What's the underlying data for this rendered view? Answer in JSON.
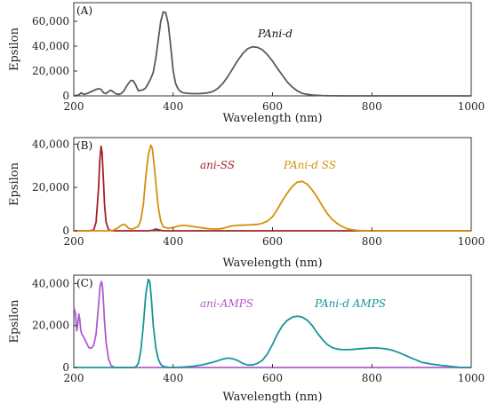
{
  "chart_data": [
    {
      "type": "line",
      "panel_label": "(A)",
      "xlabel": "Wavelength (nm)",
      "ylabel": "Epsilon",
      "xlim": [
        200,
        1000
      ],
      "ylim": [
        0,
        75000
      ],
      "xticks": [
        200,
        400,
        600,
        800,
        1000
      ],
      "xtick_labels": [
        "200",
        "400",
        "600",
        "800",
        "1000"
      ],
      "yticks": [
        0,
        20000,
        40000,
        60000
      ],
      "ytick_labels": [
        "0",
        "20,000",
        "40,000",
        "60,000"
      ],
      "grid": false,
      "series": [
        {
          "name": "PAni-d",
          "color": "#5a5a5a",
          "x": [
            200,
            210,
            215,
            220,
            228,
            235,
            240,
            245,
            250,
            255,
            260,
            265,
            270,
            275,
            280,
            285,
            290,
            295,
            300,
            305,
            310,
            315,
            320,
            325,
            330,
            335,
            340,
            345,
            350,
            355,
            360,
            365,
            370,
            375,
            380,
            385,
            390,
            395,
            400,
            405,
            410,
            415,
            420,
            425,
            430,
            440,
            450,
            460,
            470,
            480,
            490,
            500,
            510,
            520,
            530,
            540,
            550,
            560,
            570,
            580,
            590,
            600,
            610,
            620,
            630,
            640,
            650,
            660,
            670,
            680,
            690,
            700,
            720,
            750,
            800,
            850,
            900,
            950,
            1000
          ],
          "y": [
            0,
            800,
            2500,
            1200,
            2000,
            3500,
            4200,
            5200,
            5800,
            5200,
            2500,
            1800,
            3500,
            4500,
            3000,
            1600,
            1200,
            1800,
            3500,
            7000,
            10000,
            12500,
            12000,
            8500,
            4000,
            4500,
            5000,
            6500,
            10000,
            14000,
            19000,
            30000,
            45000,
            60000,
            67500,
            67000,
            58000,
            40000,
            20000,
            10000,
            5500,
            3500,
            2500,
            2200,
            2000,
            1800,
            1800,
            2000,
            2500,
            3500,
            6000,
            10000,
            15500,
            22000,
            28500,
            34000,
            38000,
            39500,
            39000,
            37000,
            33000,
            28000,
            22000,
            16500,
            11000,
            7000,
            4000,
            2000,
            1200,
            700,
            400,
            200,
            80,
            20,
            0,
            0,
            0,
            0,
            0
          ]
        }
      ],
      "annotations": [
        {
          "text": "PAni-d",
          "x": 570,
          "y": 55000,
          "color": "#111111"
        }
      ]
    },
    {
      "type": "line",
      "panel_label": "(B)",
      "xlabel": "Wavelength (nm)",
      "ylabel": "Epsilon",
      "xlim": [
        200,
        1000
      ],
      "ylim": [
        0,
        43000
      ],
      "xticks": [
        200,
        400,
        600,
        800,
        1000
      ],
      "xtick_labels": [
        "200",
        "400",
        "600",
        "800",
        "1000"
      ],
      "yticks": [
        0,
        20000,
        40000
      ],
      "ytick_labels": [
        "0",
        "20,000",
        "40,000"
      ],
      "grid": false,
      "series": [
        {
          "name": "ani-SS",
          "color": "#a3202a",
          "x": [
            200,
            230,
            240,
            245,
            250,
            252,
            255,
            257,
            260,
            262,
            265,
            270,
            275,
            280,
            300,
            350,
            360,
            365,
            370,
            380,
            400,
            500,
            1000
          ],
          "y": [
            0,
            0,
            300,
            4000,
            20000,
            32000,
            39000,
            36000,
            22000,
            12000,
            4000,
            500,
            100,
            0,
            0,
            0,
            300,
            800,
            500,
            0,
            0,
            0,
            0
          ],
          "label_text": "ani-SS"
        },
        {
          "name": "PAni-d SS",
          "color": "#d4900c",
          "x": [
            200,
            270,
            280,
            290,
            295,
            300,
            305,
            310,
            315,
            320,
            330,
            335,
            340,
            345,
            350,
            355,
            358,
            362,
            366,
            370,
            375,
            380,
            390,
            400,
            410,
            420,
            430,
            440,
            450,
            460,
            470,
            480,
            490,
            500,
            510,
            520,
            530,
            540,
            550,
            560,
            570,
            580,
            590,
            600,
            610,
            620,
            630,
            640,
            650,
            660,
            670,
            680,
            690,
            700,
            710,
            720,
            730,
            740,
            750,
            760,
            770,
            780,
            790,
            800,
            820,
            850,
            1000
          ],
          "y": [
            0,
            0,
            300,
            1500,
            2500,
            3000,
            2500,
            1200,
            800,
            1000,
            2000,
            5000,
            12000,
            25000,
            35000,
            39500,
            38000,
            30000,
            20000,
            11000,
            4500,
            1800,
            1200,
            1500,
            2200,
            2500,
            2300,
            2000,
            1600,
            1300,
            1000,
            800,
            800,
            1100,
            1800,
            2300,
            2500,
            2600,
            2700,
            2800,
            3000,
            3500,
            4500,
            6500,
            10000,
            14000,
            17500,
            20500,
            22500,
            22800,
            21500,
            18800,
            15500,
            11500,
            8000,
            5300,
            3400,
            2000,
            1000,
            500,
            200,
            80,
            30,
            0,
            0,
            0,
            0
          ],
          "label_text": "PAni-d SS"
        }
      ]
    },
    {
      "type": "line",
      "panel_label": "(C)",
      "xlabel": "Wavelength (nm)",
      "ylabel": "Epsilon",
      "xlim": [
        200,
        1000
      ],
      "ylim": [
        0,
        44000
      ],
      "xticks": [
        200,
        400,
        600,
        800,
        1000
      ],
      "xtick_labels": [
        "200",
        "400",
        "600",
        "800",
        "1000"
      ],
      "yticks": [
        0,
        20000,
        40000
      ],
      "ytick_labels": [
        "0",
        "20,000",
        "40,000"
      ],
      "grid": false,
      "series": [
        {
          "name": "ani-AMPS",
          "color": "#b05cc8",
          "x": [
            200,
            203,
            206,
            208,
            210,
            212,
            214,
            216,
            220,
            225,
            230,
            235,
            240,
            245,
            250,
            253,
            256,
            258,
            260,
            262,
            265,
            270,
            275,
            280,
            285,
            290,
            300,
            400,
            1000
          ],
          "y": [
            29000,
            26000,
            17500,
            21000,
            25500,
            23000,
            18000,
            16000,
            14500,
            12000,
            9500,
            9200,
            10500,
            16000,
            30000,
            39000,
            41000,
            38000,
            30000,
            22000,
            12000,
            4000,
            1000,
            200,
            50,
            0,
            0,
            0,
            0
          ],
          "label_text": "ani-AMPS"
        },
        {
          "name": "PAni-d AMPS",
          "color": "#17959a",
          "x": [
            200,
            300,
            320,
            325,
            330,
            335,
            340,
            345,
            350,
            353,
            356,
            360,
            365,
            370,
            375,
            380,
            390,
            400,
            420,
            440,
            460,
            480,
            490,
            500,
            510,
            520,
            530,
            540,
            550,
            560,
            570,
            580,
            590,
            600,
            610,
            620,
            630,
            640,
            650,
            660,
            670,
            680,
            690,
            700,
            710,
            720,
            730,
            740,
            750,
            760,
            770,
            780,
            790,
            800,
            810,
            820,
            830,
            840,
            850,
            860,
            870,
            880,
            890,
            900,
            920,
            940,
            960,
            980,
            1000
          ],
          "y": [
            0,
            0,
            0,
            300,
            2000,
            8000,
            20000,
            35000,
            42000,
            41000,
            33000,
            20000,
            9500,
            4000,
            1500,
            500,
            100,
            50,
            200,
            600,
            1300,
            2500,
            3200,
            4000,
            4500,
            4200,
            3300,
            2000,
            1200,
            1200,
            2000,
            3500,
            6500,
            11000,
            16000,
            20000,
            22500,
            24000,
            24500,
            24000,
            22500,
            20000,
            16500,
            13500,
            11000,
            9500,
            8800,
            8500,
            8500,
            8600,
            8800,
            9000,
            9200,
            9300,
            9300,
            9100,
            8800,
            8300,
            7500,
            6500,
            5500,
            4500,
            3500,
            2500,
            1600,
            1000,
            500,
            0,
            0
          ],
          "label_text": "PAni-d AMPS"
        }
      ]
    }
  ]
}
